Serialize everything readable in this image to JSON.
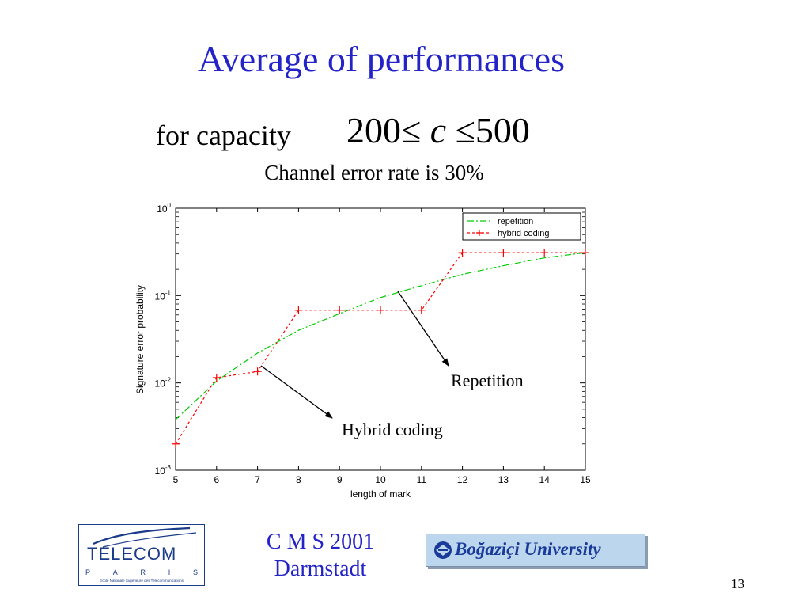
{
  "slide": {
    "title": "Average of performances",
    "capacity_label": "for capacity",
    "capacity_low": "200",
    "capacity_le1": "≤",
    "capacity_var": "c",
    "capacity_le2": "≤",
    "capacity_high": "500",
    "subtitle": "Channel error rate is 30%",
    "page_number": "13"
  },
  "footer": {
    "cms_line1": "C M S 2001",
    "cms_line2": "Darmstadt",
    "telecom_word": "TELECOM",
    "telecom_city": [
      "P",
      "A",
      "R",
      "I",
      "S"
    ],
    "telecom_school": "École Nationale Supérieure des Télécommunications",
    "bogazici": "Boğaziçi University"
  },
  "chart_data": {
    "type": "line",
    "xlabel": "length of mark",
    "ylabel": "Signature error probability",
    "x_ticks": [
      5,
      6,
      7,
      8,
      9,
      10,
      11,
      12,
      13,
      14,
      15
    ],
    "xlim": [
      5,
      15
    ],
    "y_scale": "log",
    "ylim": [
      0.001,
      1
    ],
    "y_ticks": [
      {
        "value": 0.001,
        "base": "10",
        "exp": "-3"
      },
      {
        "value": 0.01,
        "base": "10",
        "exp": "-2"
      },
      {
        "value": 0.1,
        "base": "10",
        "exp": "-1"
      },
      {
        "value": 1,
        "base": "10",
        "exp": "0"
      }
    ],
    "legend_position": "top-right",
    "grid": false,
    "x": [
      5,
      6,
      7,
      8,
      9,
      10,
      11,
      12,
      13,
      14,
      15
    ],
    "series": [
      {
        "name": "repetition",
        "color": "#00cc00",
        "style": "dash-dot",
        "marker": "none",
        "values": [
          0.0038,
          0.0105,
          0.022,
          0.04,
          0.062,
          0.095,
          0.13,
          0.175,
          0.22,
          0.27,
          0.31
        ]
      },
      {
        "name": "hybrid coding",
        "color": "#ff0000",
        "style": "dotted",
        "marker": "+",
        "values": [
          0.002,
          0.0115,
          0.0135,
          0.068,
          0.068,
          0.068,
          0.068,
          0.31,
          0.31,
          0.31,
          0.31
        ]
      }
    ],
    "annotations": [
      {
        "text": "Repetition",
        "points_to": {
          "x": 10.4,
          "y": 0.11
        }
      },
      {
        "text": "Hybrid coding",
        "points_to": {
          "x": 7.0,
          "y": 0.0135
        }
      }
    ]
  }
}
